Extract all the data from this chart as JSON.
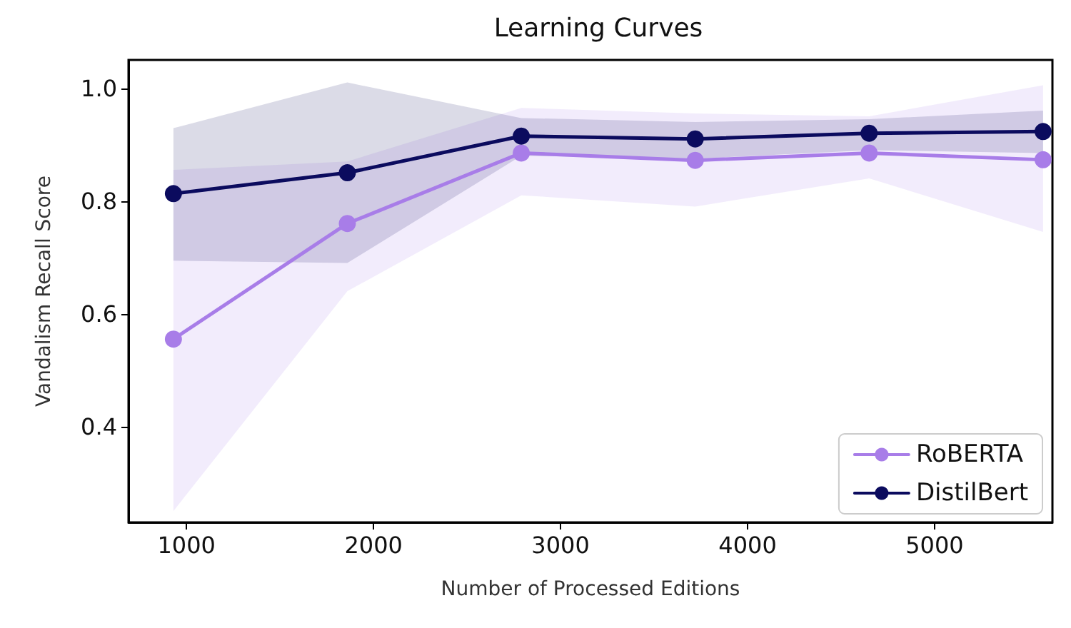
{
  "chart_data": {
    "type": "line",
    "title": "Learning Curves",
    "xlabel": "Number of Processed Editions",
    "ylabel": "Vandalism Recall Score",
    "x": [
      930,
      1860,
      2790,
      3720,
      4650,
      5580
    ],
    "series": [
      {
        "name": "RoBERTA",
        "color": "#a87de8",
        "values": [
          0.555,
          0.76,
          0.885,
          0.872,
          0.885,
          0.873
        ],
        "lower": [
          0.25,
          0.64,
          0.81,
          0.79,
          0.84,
          0.745
        ],
        "upper": [
          0.855,
          0.87,
          0.965,
          0.955,
          0.95,
          1.005
        ]
      },
      {
        "name": "DistilBert",
        "color": "#0b0b5e",
        "values": [
          0.813,
          0.85,
          0.915,
          0.91,
          0.92,
          0.923
        ],
        "lower": [
          0.694,
          0.69,
          0.88,
          0.875,
          0.89,
          0.885
        ],
        "upper": [
          0.929,
          1.01,
          0.947,
          0.94,
          0.945,
          0.96
        ]
      }
    ],
    "xlim": [
      690,
      5630
    ],
    "xticks": [
      1000,
      2000,
      3000,
      4000,
      5000
    ],
    "ylim": [
      0.23,
      1.05
    ],
    "yticks": [
      0.4,
      0.6,
      0.8,
      {
        "value": 1,
        "label": "1.0"
      }
    ],
    "grid": false,
    "legend": "bottom right",
    "marker": "circle",
    "line_style": "solid"
  }
}
